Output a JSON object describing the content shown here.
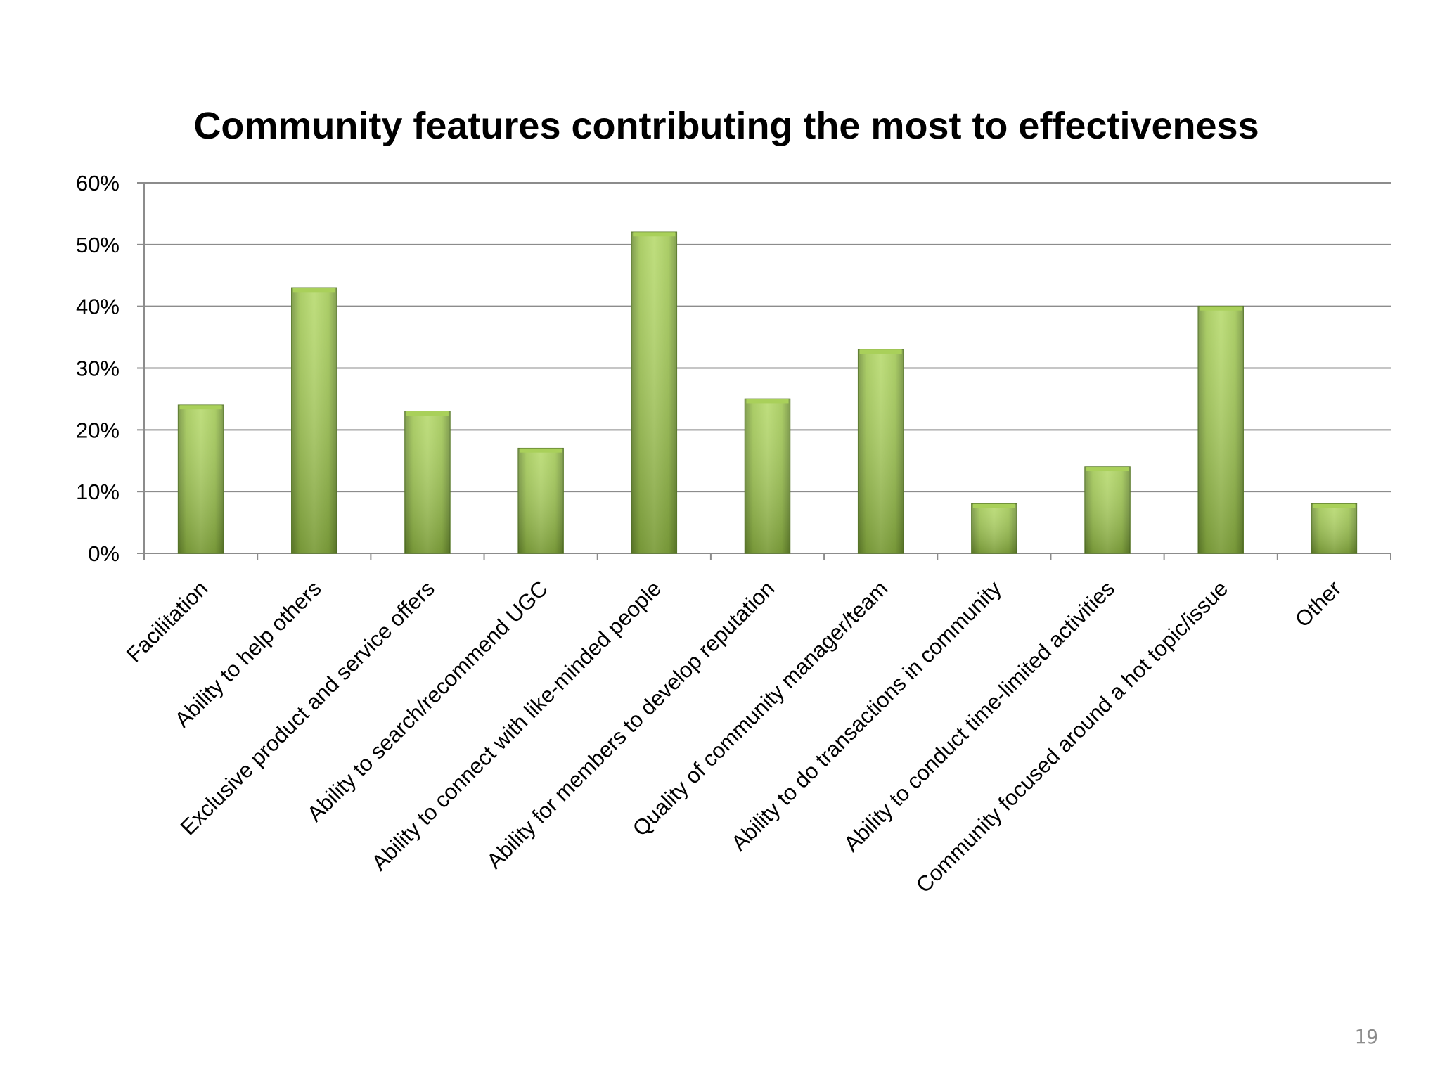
{
  "slide": {
    "page_number": "19"
  },
  "colors": {
    "bar_fill_light": "#a9d05a",
    "bar_fill_dark": "#6d8e33",
    "bar_edge": "#5a7a2a",
    "gridline": "#8c8c8c",
    "axis": "#8c8c8c",
    "text": "#000000"
  },
  "chart_data": {
    "type": "bar",
    "title": "Community features contributing the most to effectiveness",
    "xlabel": "",
    "ylabel": "",
    "ylim": [
      0,
      60
    ],
    "y_ticks": [
      0,
      10,
      20,
      30,
      40,
      50,
      60
    ],
    "y_tick_labels": [
      "0%",
      "10%",
      "20%",
      "30%",
      "40%",
      "50%",
      "60%"
    ],
    "grid": true,
    "legend": "none",
    "categories": [
      "Facilitation",
      "Ability to help others",
      "Exclusive product and service offers",
      "Ability to search/recommend UGC",
      "Ability to connect with like-minded people",
      "Ability for members to develop reputation",
      "Quality of community manager/team",
      "Ability to do transactions in community",
      "Ability to conduct time-limited activities",
      "Community focused around a hot topic/issue",
      "Other"
    ],
    "values": [
      24,
      43,
      23,
      17,
      52,
      25,
      33,
      8,
      14,
      40,
      8
    ]
  }
}
